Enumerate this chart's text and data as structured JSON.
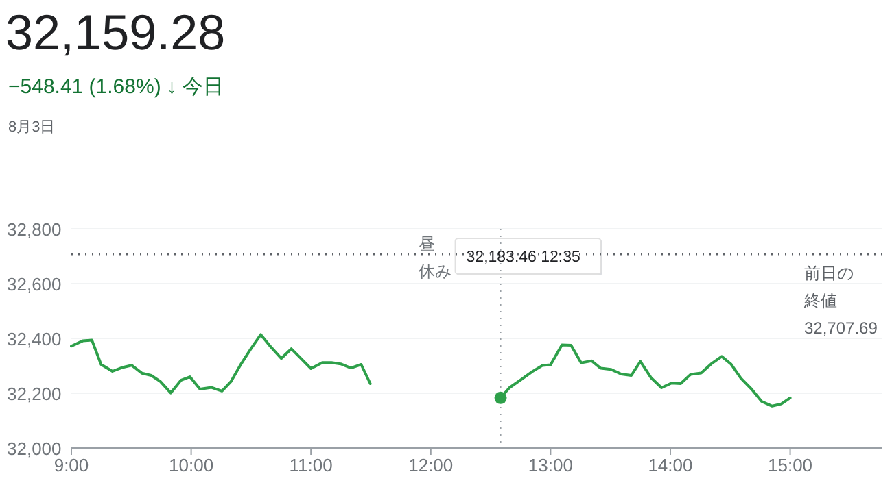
{
  "chart_data": {
    "type": "line",
    "title": "32,159.28",
    "subtitle": "−548.41 (1.68%) ↓ 今日",
    "annotations": [
      "8月3日",
      {
        "text": "昼休み",
        "x": 12
      },
      "32,183.46  12:35"
    ],
    "xlim": [
      9,
      15.77
    ],
    "ylim": [
      32000,
      32800
    ],
    "xticks": [
      {
        "value": 9,
        "label": "9:00"
      },
      {
        "value": 10,
        "label": "10:00"
      },
      {
        "value": 11,
        "label": "11:00"
      },
      {
        "value": 12,
        "label": "12:00"
      },
      {
        "value": 13,
        "label": "13:00"
      },
      {
        "value": 14,
        "label": "14:00"
      },
      {
        "value": 15,
        "label": "15:00"
      }
    ],
    "yticks": [
      {
        "value": 32000,
        "label": "32,000"
      },
      {
        "value": 32200,
        "label": "32,200"
      },
      {
        "value": 32400,
        "label": "32,400"
      },
      {
        "value": 32600,
        "label": "32,600"
      },
      {
        "value": 32800,
        "label": "32,800"
      }
    ],
    "grid": "y",
    "ref_lines": [
      {
        "axis": "y",
        "value": 32707.69,
        "label": "前日の終値32,707.69",
        "color": "#5f6368",
        "line_style": "dotted"
      },
      {
        "axis": "x",
        "value": 12.583,
        "color": "#9aa0a6",
        "line_style": "dotted"
      }
    ],
    "series": [
      {
        "color": "#2ea04a",
        "x": [
          9.0,
          9.095,
          9.171,
          9.248,
          9.343,
          9.419,
          9.503,
          9.59,
          9.667,
          9.743,
          9.83,
          9.914,
          9.99,
          10.074,
          10.17,
          10.257,
          10.333,
          10.41,
          10.497,
          10.581,
          10.665,
          10.752,
          10.836,
          10.916,
          11.0,
          11.095,
          11.171,
          11.248,
          11.335,
          11.419,
          11.495
        ],
        "values": [
          32372,
          32391,
          32394,
          32305,
          32280,
          32293,
          32302,
          32273,
          32265,
          32243,
          32201,
          32247,
          32260,
          32215,
          32221,
          32208,
          32243,
          32302,
          32361,
          32414,
          32369,
          32327,
          32362,
          32327,
          32290,
          32312,
          32312,
          32307,
          32292,
          32305,
          32235
        ]
      },
      {
        "color": "#2ea04a",
        "x": [
          12.583,
          12.657,
          12.752,
          12.848,
          12.931,
          13.0,
          13.095,
          13.171,
          13.255,
          13.343,
          13.419,
          13.503,
          13.59,
          13.674,
          13.75,
          13.838,
          13.926,
          14.01,
          14.086,
          14.17,
          14.257,
          14.341,
          14.429,
          14.505,
          14.59,
          14.678,
          14.762,
          14.85,
          14.926,
          15.0
        ],
        "values": [
          32183,
          32220,
          32249,
          32279,
          32301,
          32304,
          32376,
          32375,
          32311,
          32318,
          32291,
          32287,
          32270,
          32265,
          32316,
          32257,
          32220,
          32237,
          32235,
          32269,
          32274,
          32307,
          32334,
          32307,
          32254,
          32215,
          32170,
          32153,
          32161,
          32183
        ]
      },
      {
        "type": "scatter",
        "color": "#2ea04a",
        "marker": "circle",
        "x": [
          12.583
        ],
        "values": [
          32183
        ]
      }
    ]
  }
}
